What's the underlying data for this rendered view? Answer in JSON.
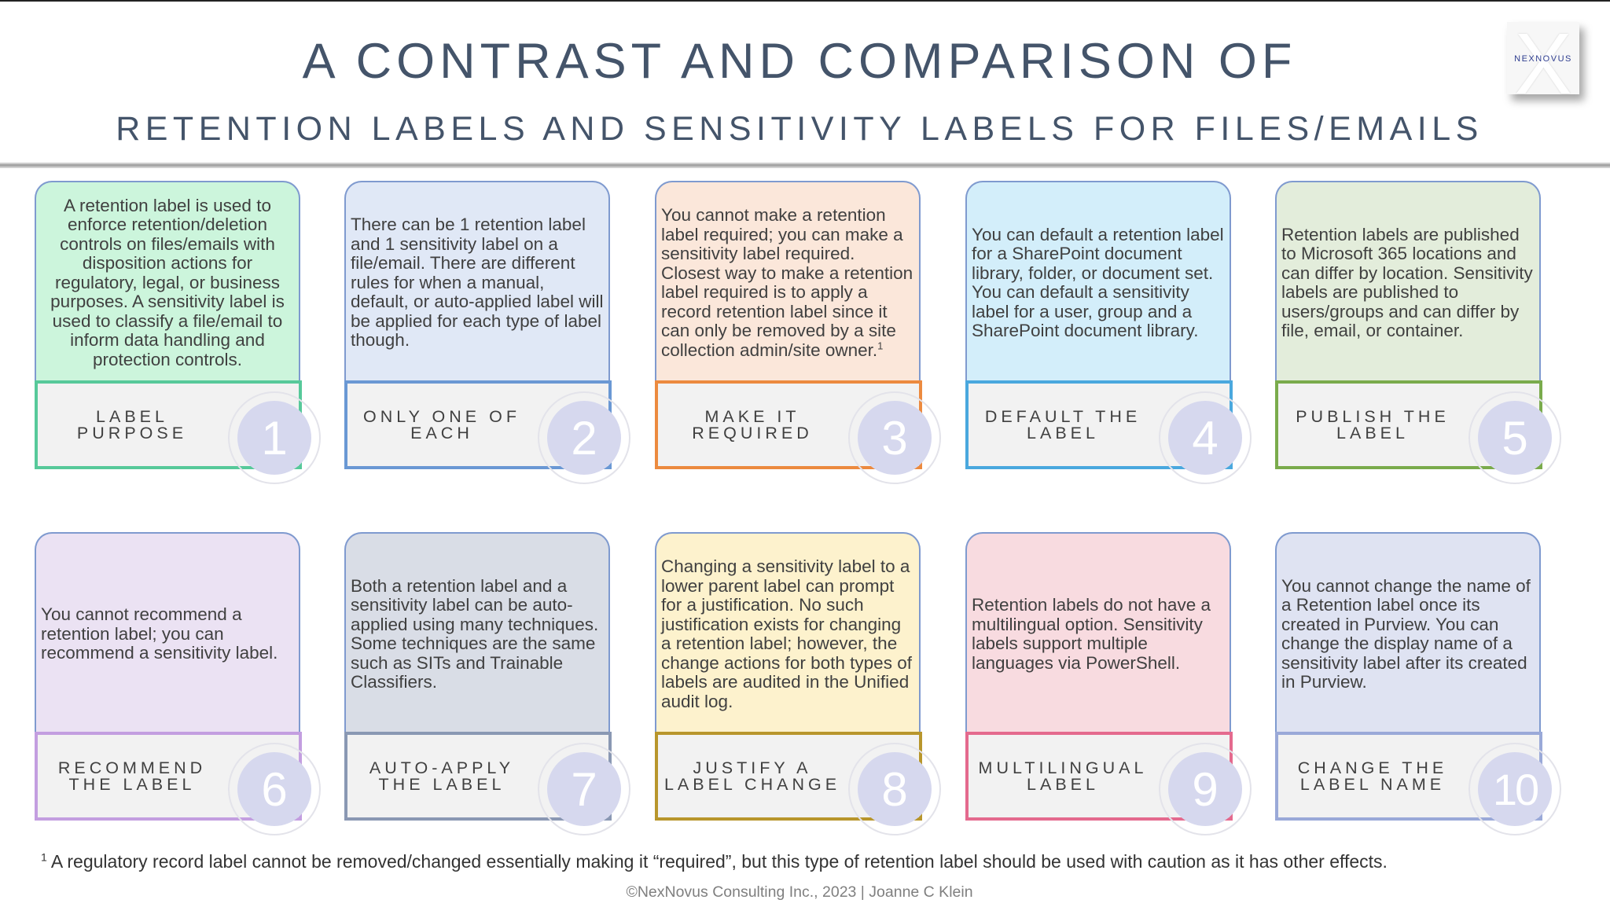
{
  "header": {
    "title": "A CONTRAST AND COMPARISON OF",
    "subtitle": "RETENTION LABELS AND SENSITIVITY LABELS FOR FILES/EMAILS",
    "logo_text": "NEXNOVUS",
    "logo_letter": "X"
  },
  "cards": [
    {
      "number": "1",
      "label": "LABEL PURPOSE",
      "text": "A retention label is used to enforce retention/deletion controls on files/emails with disposition actions for regulatory, legal, or business purposes. A sensitivity label is used to classify a file/email to inform data handling and protection controls.",
      "sup": "",
      "align": "center",
      "fill": "#ccf5dc",
      "accent": "#57c99a"
    },
    {
      "number": "2",
      "label": "ONLY ONE OF EACH",
      "text": "There can be 1 retention label and 1 sensitivity label on a file/email. There are different rules for when a manual, default, or auto-applied label will be applied for each type of label though.",
      "sup": "",
      "align": "left",
      "fill": "#e0e8f6",
      "accent": "#6a98d4"
    },
    {
      "number": "3",
      "label": "MAKE IT REQUIRED",
      "text": "You cannot make a retention label required; you can make a sensitivity label required. Closest way to make a retention label required is to apply a record retention label since it can only be removed by a site collection admin/site owner.",
      "sup": "1",
      "align": "left",
      "fill": "#fbe7da",
      "accent": "#ec8a3f"
    },
    {
      "number": "4",
      "label": "DEFAULT THE LABEL",
      "text": "You can default a retention label for a SharePoint document library, folder, or document set. You can default a sensitivity label for a user, group and a SharePoint document library.",
      "sup": "",
      "align": "left",
      "fill": "#d3eefa",
      "accent": "#4aa8de"
    },
    {
      "number": "5",
      "label": "PUBLISH THE LABEL",
      "text": "Retention labels are published to Microsoft 365 locations and can differ by location. Sensitivity labels are published to users/groups and can differ by file, email, or container.",
      "sup": "",
      "align": "left",
      "fill": "#e3eddb",
      "accent": "#7aab4c"
    },
    {
      "number": "6",
      "label": "RECOMMEND THE LABEL",
      "text": "You cannot recommend a retention label; you can recommend a sensitivity label.",
      "sup": "",
      "align": "left",
      "fill": "#ebe2f3",
      "accent": "#c39ee0"
    },
    {
      "number": "7",
      "label": "AUTO-APPLY THE LABEL",
      "text": "Both a retention label and a sensitivity label can be auto-applied using many techniques. Some techniques are the same such as SITs and Trainable Classifiers.",
      "sup": "",
      "align": "left",
      "fill": "#d9dde6",
      "accent": "#8a98b3"
    },
    {
      "number": "8",
      "label": "JUSTIFY A LABEL CHANGE",
      "text": "Changing a sensitivity label to a lower parent label can prompt for a justification. No such justification exists for changing a retention label; however, the change actions for both types of labels are audited in the Unified audit log.",
      "sup": "",
      "align": "left",
      "fill": "#fdf2cd",
      "accent": "#b8962c"
    },
    {
      "number": "9",
      "label": "MULTILINGUAL LABEL",
      "text": "Retention labels do not have a multilingual option. Sensitivity labels support multiple languages via PowerShell.",
      "sup": "",
      "align": "left",
      "fill": "#f8dbe0",
      "accent": "#e46a8e"
    },
    {
      "number": "10",
      "label": "CHANGE THE LABEL NAME",
      "text": "You cannot change the name of a Retention label once its created in Purview. You can change the display name of a sensitivity label after its created in Purview.",
      "sup": "",
      "align": "left",
      "fill": "#dfe3f2",
      "accent": "#9aa9d8"
    }
  ],
  "footnote": {
    "marker": "1",
    "text": "A regulatory record label cannot be removed/changed essentially making it “required”, but this type of retention label should be used with caution as it has other effects."
  },
  "footer": "©NexNovus Consulting Inc., 2023  |  Joanne C Klein"
}
